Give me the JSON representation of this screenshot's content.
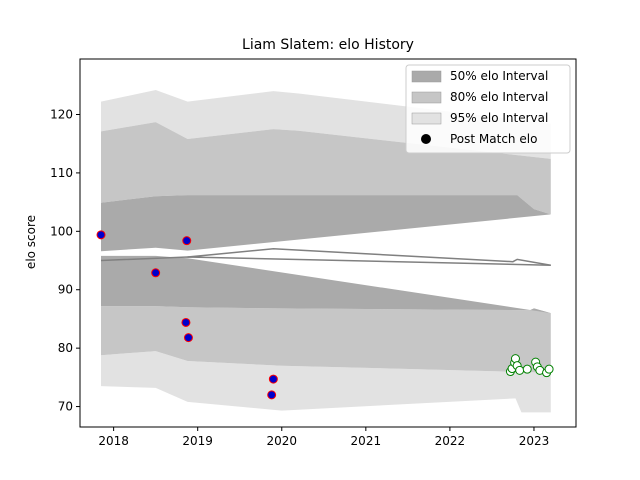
{
  "chart_data": {
    "type": "line",
    "title": "Liam Slatem: elo History",
    "xlabel": "",
    "ylabel": "elo score",
    "xlim": [
      2017.6,
      2023.5
    ],
    "ylim": [
      66.5,
      129.5
    ],
    "x_ticks": [
      2018,
      2019,
      2020,
      2021,
      2022,
      2023
    ],
    "y_ticks": [
      70,
      80,
      90,
      100,
      110,
      120
    ],
    "legend_position": "top-right",
    "legend": [
      {
        "label": "50% elo Interval",
        "kind": "band50"
      },
      {
        "label": "80% elo Interval",
        "kind": "band80"
      },
      {
        "label": "95% elo Interval",
        "kind": "band95"
      },
      {
        "label": "Post Match elo",
        "kind": "marker"
      }
    ],
    "colors": {
      "band50": "#aaaaaa",
      "band80": "#c6c6c6",
      "band95": "#e2e2e2",
      "mean_line": "#808080",
      "marker_face": "#0000cc",
      "marker_edge": "#ff0000",
      "future_marker_edge": "#008000"
    },
    "bands": {
      "upper_95": [
        [
          2017.85,
          122.2
        ],
        [
          2018.5,
          124.2
        ],
        [
          2018.88,
          122.2
        ],
        [
          2018.88,
          122.2
        ],
        [
          2019.9,
          124.0
        ],
        [
          2020.2,
          123.6
        ],
        [
          2023.2,
          118.4
        ]
      ],
      "upper_80": [
        [
          2017.85,
          117.1
        ],
        [
          2018.5,
          118.7
        ],
        [
          2018.88,
          115.8
        ],
        [
          2018.88,
          115.8
        ],
        [
          2019.9,
          117.5
        ],
        [
          2020.2,
          117.2
        ],
        [
          2023.2,
          112.4
        ]
      ],
      "upper_50": [
        [
          2017.85,
          104.9
        ],
        [
          2018.5,
          106.0
        ],
        [
          2018.88,
          106.2
        ],
        [
          2018.88,
          106.2
        ],
        [
          2022.8,
          106.2
        ],
        [
          2023.0,
          103.8
        ],
        [
          2023.2,
          102.9
        ]
      ],
      "lower_50": [
        [
          2017.85,
          87.2
        ],
        [
          2018.5,
          87.2
        ],
        [
          2018.88,
          87.0
        ],
        [
          2018.88,
          87.0
        ],
        [
          2020.0,
          86.8
        ],
        [
          2022.95,
          86.5
        ],
        [
          2023.0,
          86.8
        ],
        [
          2023.2,
          86.0
        ]
      ],
      "lower_80": [
        [
          2017.85,
          78.8
        ],
        [
          2018.5,
          79.5
        ],
        [
          2018.88,
          77.8
        ],
        [
          2018.88,
          77.8
        ],
        [
          2020.0,
          77.0
        ],
        [
          2023.2,
          75.8
        ]
      ],
      "lower_95": [
        [
          2017.85,
          73.5
        ],
        [
          2018.5,
          73.2
        ],
        [
          2018.88,
          70.8
        ],
        [
          2018.88,
          70.8
        ],
        [
          2020.0,
          69.3
        ],
        [
          2022.78,
          71.4
        ],
        [
          2022.85,
          69.0
        ],
        [
          2023.2,
          69.0
        ]
      ],
      "mid_50_hi": [
        [
          2017.85,
          96.6
        ],
        [
          2018.5,
          97.2
        ],
        [
          2018.88,
          96.7
        ]
      ],
      "mid_50_lo": [
        [
          2017.85,
          95.8
        ],
        [
          2018.5,
          95.8
        ],
        [
          2018.88,
          95.4
        ]
      ]
    },
    "mean_lines": [
      [
        [
          2017.85,
          95.0
        ],
        [
          2018.88,
          95.6
        ],
        [
          2023.2,
          94.2
        ]
      ],
      [
        [
          2018.88,
          95.6
        ],
        [
          2019.9,
          97.0
        ],
        [
          2022.75,
          94.8
        ],
        [
          2022.8,
          95.2
        ],
        [
          2023.2,
          94.2
        ]
      ]
    ],
    "post_match_elo": [
      {
        "x": 2017.85,
        "y": 99.4
      },
      {
        "x": 2018.5,
        "y": 92.9
      },
      {
        "x": 2018.87,
        "y": 98.4
      },
      {
        "x": 2018.86,
        "y": 84.4
      },
      {
        "x": 2018.89,
        "y": 81.8
      },
      {
        "x": 2019.9,
        "y": 74.7
      },
      {
        "x": 2019.88,
        "y": 72.0
      }
    ],
    "future_points": [
      {
        "x": 2022.72,
        "y": 76.0
      },
      {
        "x": 2022.74,
        "y": 76.5
      },
      {
        "x": 2022.77,
        "y": 77.5
      },
      {
        "x": 2022.78,
        "y": 78.2
      },
      {
        "x": 2022.8,
        "y": 77.0
      },
      {
        "x": 2022.83,
        "y": 76.2
      },
      {
        "x": 2022.92,
        "y": 76.4
      },
      {
        "x": 2023.02,
        "y": 77.6
      },
      {
        "x": 2023.04,
        "y": 76.8
      },
      {
        "x": 2023.07,
        "y": 76.2
      },
      {
        "x": 2023.15,
        "y": 75.8
      },
      {
        "x": 2023.18,
        "y": 76.4
      }
    ]
  }
}
